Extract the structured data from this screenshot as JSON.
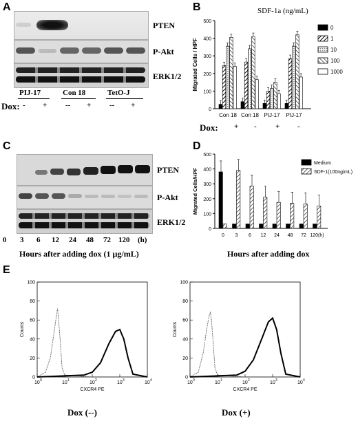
{
  "panels": {
    "a": {
      "letter": "A",
      "blot_labels": [
        "PTEN",
        "P-Akt",
        "ERK1/2"
      ],
      "groups": [
        "PIJ-17",
        "Con 18",
        "TetO-J"
      ],
      "dox_label": "Dox:",
      "dox_values": [
        "-",
        "+",
        "--",
        "+",
        "--",
        "+"
      ]
    },
    "b": {
      "letter": "B",
      "legend_title": "SDF-1a (ng/mL)",
      "legend_items": [
        "0",
        "1",
        "10",
        "100",
        "1000"
      ],
      "dox_label": "Dox:",
      "dox_values": [
        "+",
        "-",
        "+",
        "-"
      ]
    },
    "c": {
      "letter": "C",
      "blot_labels": [
        "PTEN",
        "P-Akt",
        "ERK1/2"
      ],
      "timepoints": [
        "0",
        "3",
        "6",
        "12",
        "24",
        "48",
        "72",
        "120",
        "(h)"
      ],
      "caption": "Hours after adding dox (1 µg/mL)"
    },
    "d": {
      "letter": "D",
      "caption": "Hours after adding dox"
    },
    "e": {
      "letter": "E",
      "captions": [
        "Dox (--)",
        "Dox (+)"
      ],
      "ylabel": "Counts",
      "xlabel": "CXCR4 PE",
      "yticks": [
        "0",
        "20",
        "40",
        "60",
        "80",
        "100"
      ],
      "xticks": [
        "10",
        "10",
        "10",
        "10",
        "10"
      ],
      "xtick_exponents": [
        "0",
        "1",
        "2",
        "3",
        "4"
      ]
    }
  },
  "chart_data": [
    {
      "type": "bar",
      "panel": "B",
      "ylabel": "Migrated Cells / HPF",
      "ylim": [
        0,
        500
      ],
      "yticks": [
        0,
        100,
        200,
        300,
        400,
        500
      ],
      "categories": [
        "Con 18",
        "Con 18",
        "PIJ-17",
        "PIJ-17"
      ],
      "series": [
        {
          "name": "0",
          "values": [
            25,
            40,
            30,
            30
          ]
        },
        {
          "name": "1",
          "values": [
            245,
            265,
            100,
            285
          ]
        },
        {
          "name": "10",
          "values": [
            355,
            340,
            115,
            355
          ]
        },
        {
          "name": "100",
          "values": [
            405,
            410,
            150,
            420
          ]
        },
        {
          "name": "1000",
          "values": [
            240,
            165,
            85,
            180
          ]
        }
      ],
      "legend": "top-right"
    },
    {
      "type": "bar",
      "panel": "D",
      "ylabel": "Migrated Cells/HPF",
      "ylim": [
        0,
        500
      ],
      "yticks": [
        0,
        100,
        200,
        300,
        400,
        500
      ],
      "categories": [
        "0",
        "3",
        "6",
        "12",
        "24",
        "48",
        "72",
        "120(h)"
      ],
      "series": [
        {
          "name": "Medium",
          "values": [
            380,
            30,
            30,
            30,
            30,
            30,
            30,
            30
          ]
        },
        {
          "name": "SDF-1(100ng/mL)",
          "values": [
            30,
            390,
            285,
            210,
            175,
            170,
            165,
            150
          ]
        }
      ],
      "legend": "top-right"
    },
    {
      "type": "area",
      "panel": "E-left",
      "ylabel": "Counts",
      "xlabel": "CXCR4 PE",
      "xlim": [
        1,
        10000
      ],
      "ylim": [
        0,
        100
      ],
      "x_scale": "log",
      "series": [
        {
          "x": [
            1,
            2,
            3,
            4,
            5,
            5.5,
            6,
            7,
            8,
            10,
            100
          ],
          "y": [
            0,
            5,
            20,
            45,
            65,
            72,
            60,
            35,
            10,
            2,
            0
          ]
        },
        {
          "x": [
            1,
            50,
            100,
            200,
            400,
            700,
            1000,
            1400,
            2000,
            3000,
            10000
          ],
          "y": [
            0,
            2,
            5,
            15,
            35,
            48,
            50,
            40,
            20,
            3,
            0
          ]
        }
      ]
    },
    {
      "type": "area",
      "panel": "E-right",
      "ylabel": "Counts",
      "xlabel": "CXCR4 PE",
      "xlim": [
        1,
        10000
      ],
      "ylim": [
        0,
        100
      ],
      "x_scale": "log",
      "series": [
        {
          "x": [
            1,
            2,
            3,
            4,
            5,
            5.5,
            6,
            7,
            8,
            10,
            100
          ],
          "y": [
            0,
            5,
            25,
            50,
            65,
            68,
            60,
            35,
            10,
            2,
            0
          ]
        },
        {
          "x": [
            1,
            50,
            100,
            200,
            400,
            700,
            1000,
            1400,
            2000,
            3000,
            10000
          ],
          "y": [
            0,
            2,
            6,
            18,
            40,
            58,
            62,
            50,
            25,
            3,
            0
          ]
        }
      ]
    }
  ]
}
